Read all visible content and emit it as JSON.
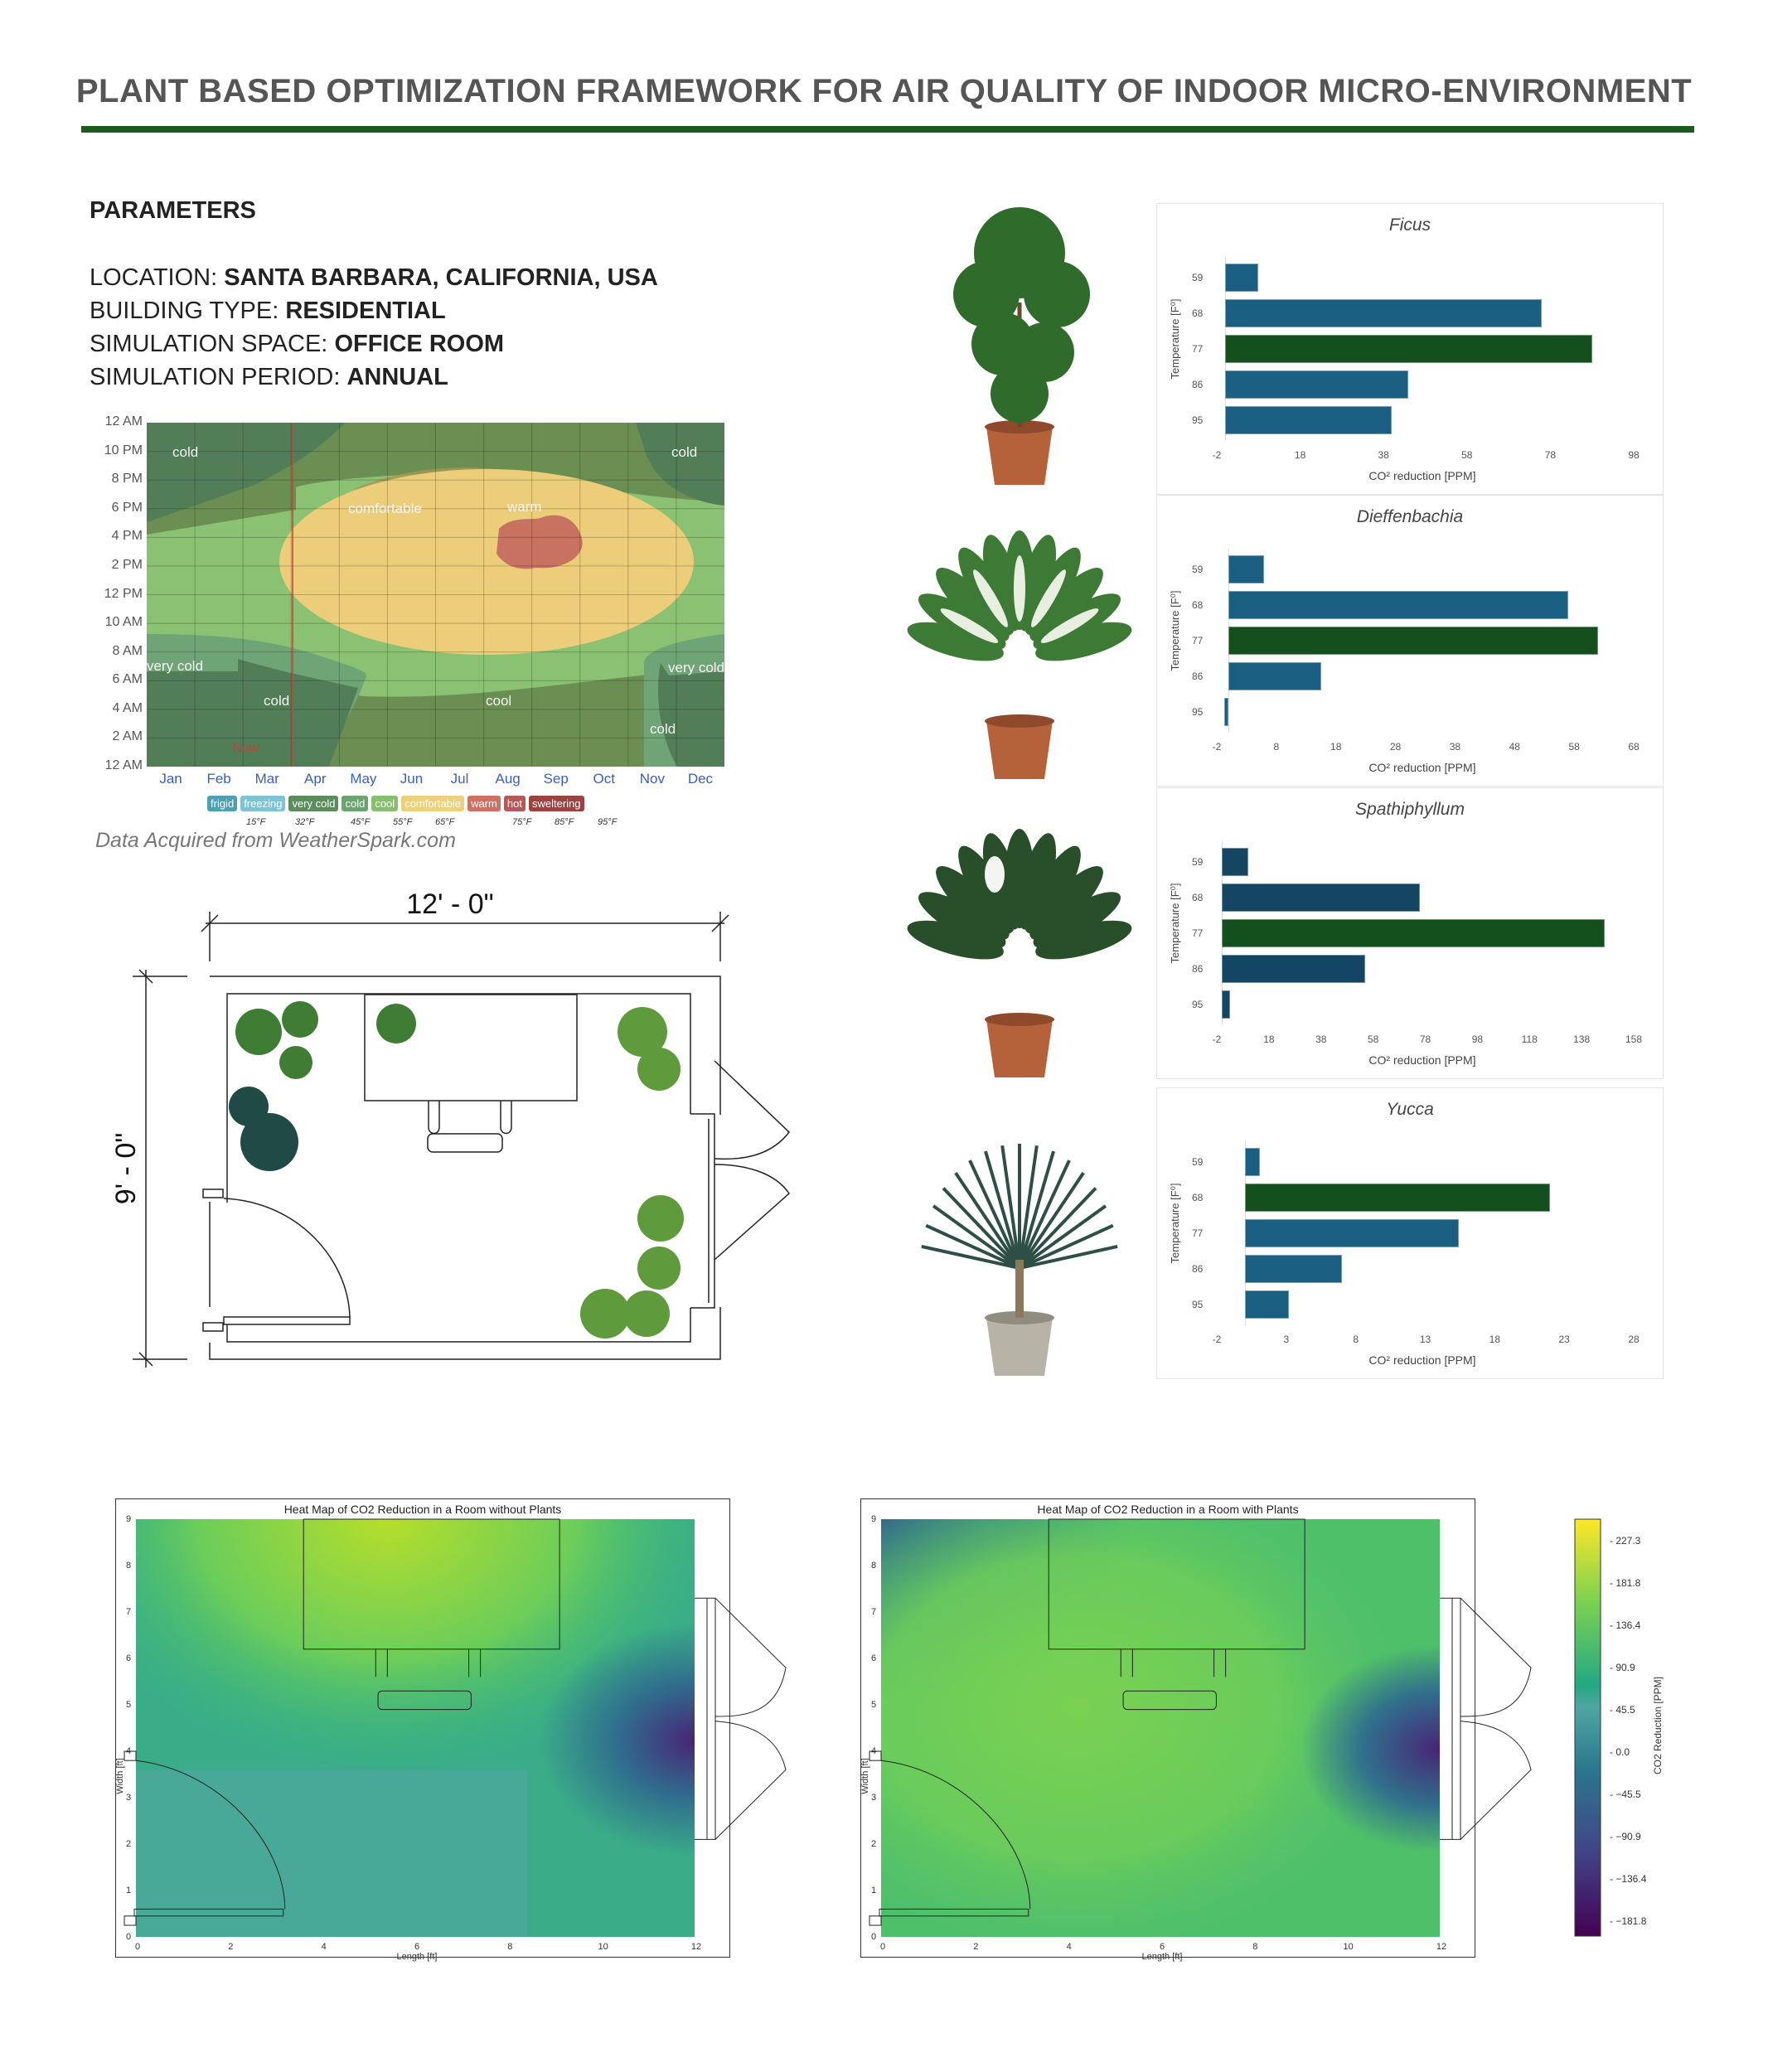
{
  "title": "PLANT BASED OPTIMIZATION FRAMEWORK FOR AIR QUALITY OF INDOOR MICRO-ENVIRONMENT",
  "parameters": {
    "heading": "PARAMETERS",
    "items": [
      {
        "label": "LOCATION: ",
        "value": "SANTA BARBARA, CALIFORNIA, USA"
      },
      {
        "label": "BUILDING TYPE: ",
        "value": "RESIDENTIAL"
      },
      {
        "label": "SIMULATION SPACE: ",
        "value": "OFFICE ROOM"
      },
      {
        "label": "SIMULATION PERIOD: ",
        "value": "ANNUAL"
      }
    ]
  },
  "weather": {
    "y_ticks": [
      "12 AM",
      "10 PM",
      "8 PM",
      "6 PM",
      "4 PM",
      "2 PM",
      "12 PM",
      "10 AM",
      "8 AM",
      "6 AM",
      "4 AM",
      "2 AM",
      "12 AM"
    ],
    "months": [
      "Jan",
      "Feb",
      "Mar",
      "Apr",
      "May",
      "Jun",
      "Jul",
      "Aug",
      "Sep",
      "Oct",
      "Nov",
      "Dec"
    ],
    "zones": [
      {
        "label": "cold",
        "pos": "top-left"
      },
      {
        "label": "cold",
        "pos": "top-right"
      },
      {
        "label": "comfortable",
        "pos": "center"
      },
      {
        "label": "warm",
        "pos": "center-right"
      },
      {
        "label": "very cold",
        "pos": "left"
      },
      {
        "label": "very cold",
        "pos": "right"
      },
      {
        "label": "cold",
        "pos": "bottom-left"
      },
      {
        "label": "cool",
        "pos": "bottom-center"
      },
      {
        "label": "cold",
        "pos": "bottom-right"
      }
    ],
    "now_label": "Now",
    "colors": {
      "cold": "#527e57",
      "cool": "#6b8f52",
      "very_cold": "#6fa476",
      "light": "#8bc172",
      "comfortable": "#ebcd7a",
      "warm": "#c87262",
      "now": "#d0413a"
    },
    "legend": [
      {
        "label": "frigid",
        "color": "#4f9fb2"
      },
      {
        "label": "freezing",
        "color": "#7ec3d4"
      },
      {
        "label": "very cold",
        "color": "#5a8c5c"
      },
      {
        "label": "cold",
        "color": "#6aa46f"
      },
      {
        "label": "cool",
        "color": "#86c06a"
      },
      {
        "label": "comfortable",
        "color": "#ecd07c"
      },
      {
        "label": "warm",
        "color": "#cf7060"
      },
      {
        "label": "hot",
        "color": "#b55858"
      },
      {
        "label": "sweltering",
        "color": "#9b4340"
      }
    ],
    "thresholds": [
      "15°F",
      "32°F",
      "45°F",
      "55°F",
      "65°F",
      "75°F",
      "85°F",
      "95°F"
    ],
    "source": "Data Acquired from WeatherSpark.com"
  },
  "floorplan": {
    "width_dim": "12' - 0\"",
    "height_dim": "9' - 0\""
  },
  "plants": [
    "ficus",
    "dieffenbachia",
    "spathiphyllum",
    "yucca"
  ],
  "chart_data": [
    {
      "type": "bar",
      "orientation": "horizontal",
      "title": "Ficus",
      "categories": [
        "59",
        "68",
        "77",
        "86",
        "95"
      ],
      "values": [
        8,
        76,
        88,
        44,
        40
      ],
      "xlim": [
        -2,
        98
      ],
      "xticks": [
        "-2",
        "18",
        "38",
        "58",
        "78",
        "98"
      ],
      "xlabel": "CO² reduction [PPM]",
      "ylabel": "Temperature [F⁰]",
      "bar_color": "#1a5f82",
      "highlight_color": "#14501e",
      "highlight": "77",
      "grid": false
    },
    {
      "type": "bar",
      "orientation": "horizontal",
      "title": "Dieffenbachia",
      "categories": [
        "59",
        "68",
        "77",
        "86",
        "95"
      ],
      "values": [
        6,
        57,
        62,
        15.5,
        -0.7
      ],
      "xlim": [
        -2,
        68
      ],
      "xticks": [
        "-2",
        "8",
        "18",
        "28",
        "38",
        "48",
        "58",
        "68"
      ],
      "xlabel": "CO² reduction [PPM]",
      "ylabel": "Temperature [F⁰]",
      "bar_color": "#1a5f82",
      "highlight_color": "#14501e",
      "highlight": "77",
      "grid": false
    },
    {
      "type": "bar",
      "orientation": "horizontal",
      "title": "Spathiphyllum",
      "categories": [
        "59",
        "68",
        "77",
        "86",
        "95"
      ],
      "values": [
        10,
        76,
        147,
        55,
        3
      ],
      "xlim": [
        -2,
        158
      ],
      "xticks": [
        "-2",
        "18",
        "38",
        "58",
        "78",
        "98",
        "118",
        "138",
        "158"
      ],
      "xlabel": "CO² reduction [PPM]",
      "ylabel": "Temperature [F⁰]",
      "bar_color": "#124663",
      "highlight_color": "#14501e",
      "highlight": "77",
      "grid": false
    },
    {
      "type": "bar",
      "orientation": "horizontal",
      "title": "Yucca",
      "categories": [
        "59",
        "68",
        "77",
        "86",
        "95"
      ],
      "values": [
        1.1,
        22,
        15.4,
        7,
        3.2
      ],
      "xlim": [
        -2,
        28
      ],
      "xticks": [
        "-2",
        "3",
        "8",
        "13",
        "18",
        "23",
        "28"
      ],
      "xlabel": "CO² reduction [PPM]",
      "ylabel": "Temperature [F⁰]",
      "bar_color": "#1a5f82",
      "highlight_color": "#14501e",
      "highlight": "68",
      "grid": false
    }
  ],
  "heatmaps": [
    {
      "title": "Heat Map of CO2 Reduction in a Room without Plants",
      "xlabel": "Length [ft]",
      "ylabel": "Width [ft]",
      "xticks": [
        "0",
        "2",
        "4",
        "6",
        "8",
        "10",
        "12"
      ],
      "yticks": [
        "0",
        "1",
        "2",
        "3",
        "4",
        "5",
        "6",
        "7",
        "8",
        "9"
      ]
    },
    {
      "title": "Heat Map of CO2 Reduction in a Room with Plants",
      "xlabel": "Length [ft]",
      "ylabel": "Width [ft]",
      "xticks": [
        "0",
        "2",
        "4",
        "6",
        "8",
        "10",
        "12"
      ],
      "yticks": [
        "0",
        "1",
        "2",
        "3",
        "4",
        "5",
        "6",
        "7",
        "8",
        "9"
      ]
    }
  ],
  "colorbar": {
    "label": "CO2 Reduction [PPM]",
    "ticks": [
      "227.3",
      "181.8",
      "136.4",
      "90.9",
      "45.5",
      "0.0",
      "−45.5",
      "−90.9",
      "−136.4",
      "−181.8"
    ],
    "colormap": "viridis"
  }
}
